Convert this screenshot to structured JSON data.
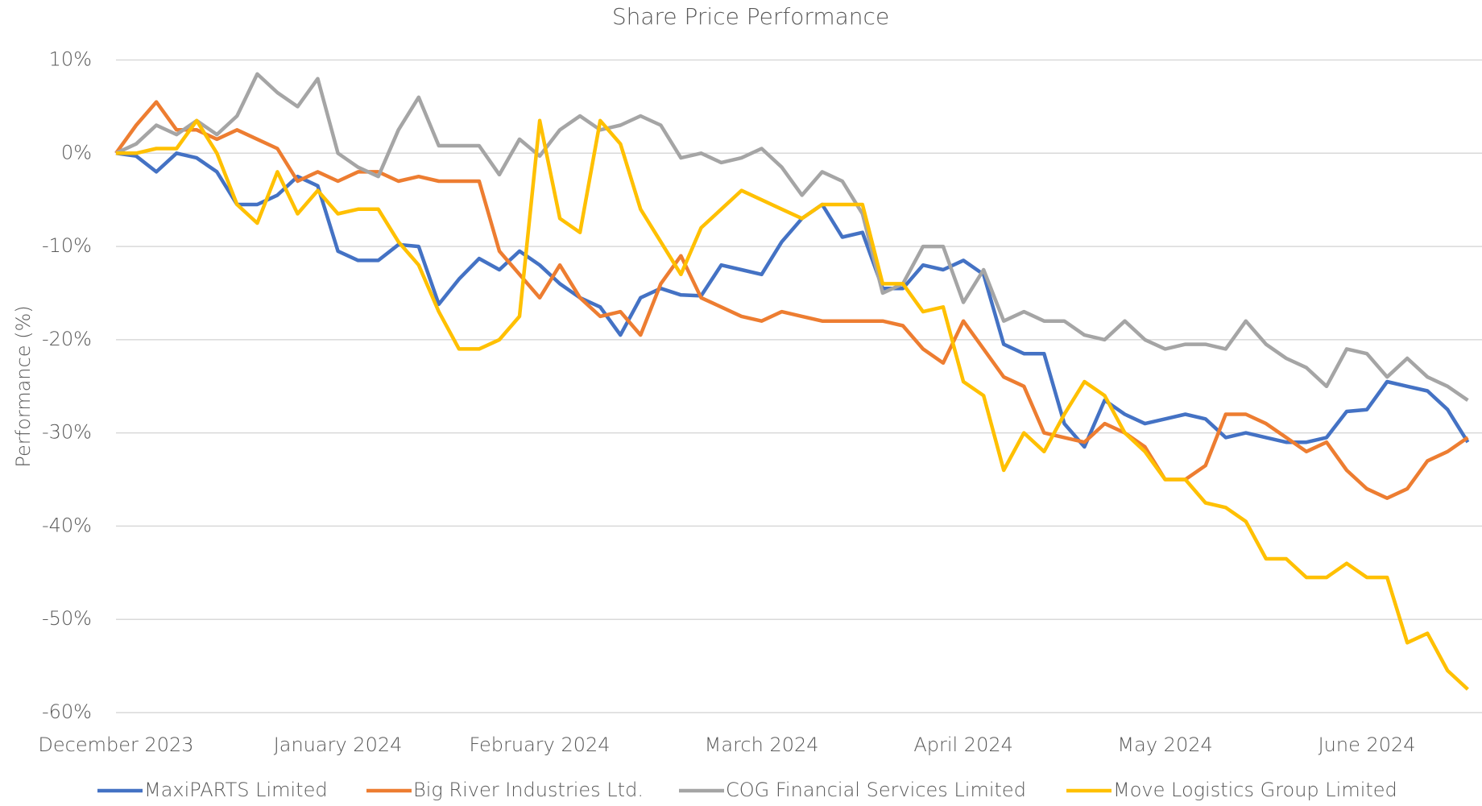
{
  "chart_data": {
    "type": "line",
    "title": "Share Price Performance",
    "y_label": "Performance (%)",
    "categories": [
      "December 2023",
      null,
      null,
      null,
      null,
      null,
      null,
      null,
      null,
      null,
      null,
      "January 2024",
      null,
      null,
      null,
      null,
      null,
      null,
      null,
      null,
      null,
      "February 2024",
      null,
      null,
      null,
      null,
      null,
      null,
      null,
      null,
      null,
      null,
      "March 2024",
      null,
      null,
      null,
      null,
      null,
      null,
      null,
      null,
      null,
      "April 2024",
      null,
      null,
      null,
      null,
      null,
      null,
      null,
      null,
      null,
      "May 2024",
      null,
      null,
      null,
      null,
      null,
      null,
      null,
      null,
      null,
      "June 2024",
      null,
      null,
      null,
      null,
      null
    ],
    "series": [
      {
        "name": "MaxiPARTS Limited",
        "color": "#4472c4",
        "values": [
          0,
          -0.3,
          -2,
          0,
          -0.5,
          -2,
          -5.5,
          -5.5,
          -4.5,
          -2.5,
          -3.5,
          -10.5,
          -11.5,
          -11.5,
          -9.8,
          -10,
          -16.2,
          -13.5,
          -11.3,
          -12.5,
          -10.5,
          -12,
          -14,
          -15.5,
          -16.5,
          -19.5,
          -15.5,
          -14.5,
          -15.2,
          -15.3,
          -12,
          -12.5,
          -13,
          -9.5,
          -7,
          -5.5,
          -9,
          -8.5,
          -14.5,
          -14.5,
          -12,
          -12.5,
          -11.5,
          -13,
          -20.5,
          -21.5,
          -21.5,
          -29,
          -31.5,
          -26.5,
          -28,
          -29,
          -28.5,
          -28,
          -28.5,
          -30.5,
          -30,
          -30.5,
          -31,
          -31,
          -30.5,
          -27.7,
          -27.5,
          -24.5,
          -25,
          -25.5,
          -27.5,
          -31
        ]
      },
      {
        "name": "Big River Industries Ltd.",
        "color": "#ed7d31",
        "values": [
          0,
          3,
          5.5,
          2.5,
          2.5,
          1.5,
          2.5,
          1.5,
          0.5,
          -3,
          -2,
          -3,
          -2,
          -2,
          -3,
          -2.5,
          -3,
          -3,
          -3,
          -10.5,
          -13,
          -15.5,
          -12,
          -15.5,
          -17.5,
          -17,
          -19.5,
          -14,
          -11,
          -15.5,
          -16.5,
          -17.5,
          -18,
          -17,
          -17.5,
          -18,
          -18,
          -18,
          -18,
          -18.5,
          -21,
          -22.5,
          -18,
          -21,
          -24,
          -25,
          -30,
          -30.5,
          -31,
          -29,
          -30,
          -31.5,
          -35,
          -35,
          -33.5,
          -28,
          -28,
          -29,
          -30.5,
          -32,
          -31,
          -34,
          -36,
          -37,
          -36,
          -33,
          -32,
          -30.5
        ]
      },
      {
        "name": "COG Financial Services Limited",
        "color": "#a5a5a5",
        "values": [
          0,
          1,
          3,
          2,
          3.5,
          2,
          4,
          8.5,
          6.5,
          5,
          8,
          0,
          -1.5,
          -2.5,
          2.5,
          6,
          0.8,
          0.8,
          0.8,
          -2.3,
          1.5,
          -0.3,
          2.5,
          4,
          2.5,
          3,
          4,
          3,
          -0.5,
          0,
          -1,
          -0.5,
          0.5,
          -1.5,
          -4.5,
          -2,
          -3,
          -6.5,
          -15,
          -14,
          -10,
          -10,
          -16,
          -12.5,
          -18,
          -17,
          -18,
          -18,
          -19.5,
          -20,
          -18,
          -20,
          -21,
          -20.5,
          -20.5,
          -21,
          -18,
          -20.5,
          -22,
          -23,
          -25,
          -21,
          -21.5,
          -24,
          -22,
          -24,
          -25,
          -26.5
        ]
      },
      {
        "name": "Move Logistics Group Limited",
        "color": "#ffc000",
        "values": [
          0,
          0,
          0.5,
          0.5,
          3.5,
          0,
          -5.5,
          -7.5,
          -2,
          -6.5,
          -4,
          -6.5,
          -6,
          -6,
          -9.5,
          -12,
          -17,
          -21,
          -21,
          -20,
          -17.5,
          3.5,
          -7,
          -8.5,
          3.5,
          1,
          -6,
          -9.5,
          -13,
          -8,
          -6,
          -4,
          -5,
          -6,
          -7,
          -5.5,
          -5.5,
          -5.5,
          -14,
          -14,
          -17,
          -16.5,
          -24.5,
          -26,
          -34,
          -30,
          -32,
          -28,
          -24.5,
          -26,
          -30,
          -32,
          -35,
          -35,
          -37.5,
          -38,
          -39.5,
          -43.5,
          -43.5,
          -45.5,
          -45.5,
          -44,
          -45.5,
          -45.5,
          -52.5,
          -51.5,
          -55.5,
          -57.5
        ]
      }
    ],
    "ylim": [
      -60,
      10
    ],
    "yticks": [
      {
        "value": 10,
        "label": "10%"
      },
      {
        "value": 0,
        "label": "0%"
      },
      {
        "value": -10,
        "label": "-10%"
      },
      {
        "value": -20,
        "label": "-20%"
      },
      {
        "value": -30,
        "label": "-30%"
      },
      {
        "value": -40,
        "label": "-40%"
      },
      {
        "value": -50,
        "label": "-50%"
      },
      {
        "value": -60,
        "label": "-60%"
      }
    ],
    "grid": true,
    "legend": "bottom"
  }
}
